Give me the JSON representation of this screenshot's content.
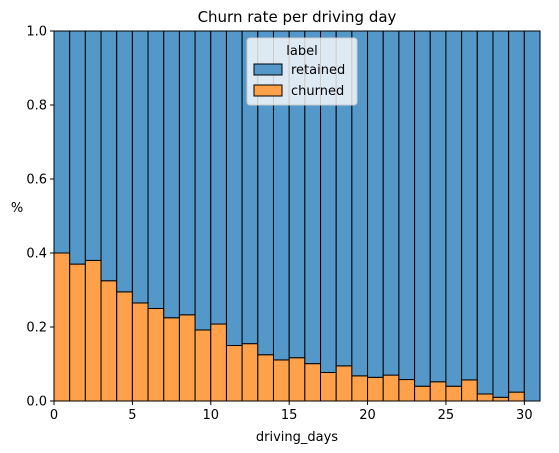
{
  "chart_data": {
    "type": "bar",
    "stacked": true,
    "normalized": true,
    "title": "Churn rate per driving day",
    "xlabel": "driving_days",
    "ylabel": "%",
    "xlim": [
      0,
      31
    ],
    "ylim": [
      0,
      1
    ],
    "xticks": [
      0,
      5,
      10,
      15,
      20,
      25,
      30
    ],
    "yticks": [
      0.0,
      0.2,
      0.4,
      0.6,
      0.8,
      1.0
    ],
    "ytick_labels": [
      "0.0",
      "0.2",
      "0.4",
      "0.6",
      "0.8",
      "1.0"
    ],
    "grid": false,
    "bin_width": 1,
    "x": [
      0,
      1,
      2,
      3,
      4,
      5,
      6,
      7,
      8,
      9,
      10,
      11,
      12,
      13,
      14,
      15,
      16,
      17,
      18,
      19,
      20,
      21,
      22,
      23,
      24,
      25,
      26,
      27,
      28,
      29,
      30
    ],
    "series": [
      {
        "name": "churned",
        "color": "#ffa04a",
        "values": [
          0.4,
          0.37,
          0.38,
          0.325,
          0.295,
          0.265,
          0.25,
          0.225,
          0.233,
          0.192,
          0.208,
          0.15,
          0.155,
          0.125,
          0.111,
          0.117,
          0.101,
          0.077,
          0.095,
          0.068,
          0.064,
          0.07,
          0.058,
          0.04,
          0.052,
          0.04,
          0.057,
          0.019,
          0.01,
          0.024,
          0.0
        ]
      },
      {
        "name": "retained",
        "color": "#5497c9",
        "values": [
          0.6,
          0.63,
          0.62,
          0.675,
          0.705,
          0.735,
          0.75,
          0.775,
          0.767,
          0.808,
          0.792,
          0.85,
          0.845,
          0.875,
          0.889,
          0.883,
          0.899,
          0.923,
          0.905,
          0.932,
          0.936,
          0.93,
          0.942,
          0.96,
          0.948,
          0.96,
          0.943,
          0.981,
          0.99,
          0.976,
          1.0
        ]
      }
    ],
    "legend": {
      "title": "label",
      "placement": "top-center",
      "entries": [
        "retained",
        "churned"
      ]
    }
  }
}
